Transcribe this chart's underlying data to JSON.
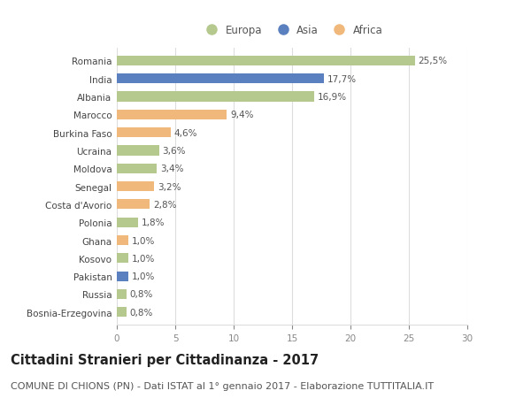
{
  "countries": [
    "Romania",
    "India",
    "Albania",
    "Marocco",
    "Burkina Faso",
    "Ucraina",
    "Moldova",
    "Senegal",
    "Costa d'Avorio",
    "Polonia",
    "Ghana",
    "Kosovo",
    "Pakistan",
    "Russia",
    "Bosnia-Erzegovina"
  ],
  "values": [
    25.5,
    17.7,
    16.9,
    9.4,
    4.6,
    3.6,
    3.4,
    3.2,
    2.8,
    1.8,
    1.0,
    1.0,
    1.0,
    0.8,
    0.8
  ],
  "labels": [
    "25,5%",
    "17,7%",
    "16,9%",
    "9,4%",
    "4,6%",
    "3,6%",
    "3,4%",
    "3,2%",
    "2,8%",
    "1,8%",
    "1,0%",
    "1,0%",
    "1,0%",
    "0,8%",
    "0,8%"
  ],
  "continents": [
    "Europa",
    "Asia",
    "Europa",
    "Africa",
    "Africa",
    "Europa",
    "Europa",
    "Africa",
    "Africa",
    "Europa",
    "Africa",
    "Europa",
    "Asia",
    "Europa",
    "Europa"
  ],
  "colors": {
    "Europa": "#b5c98e",
    "Asia": "#5b80bf",
    "Africa": "#f0b87a"
  },
  "xlim": [
    0,
    30
  ],
  "xticks": [
    0,
    5,
    10,
    15,
    20,
    25,
    30
  ],
  "title": "Cittadini Stranieri per Cittadinanza - 2017",
  "subtitle": "COMUNE DI CHIONS (PN) - Dati ISTAT al 1° gennaio 2017 - Elaborazione TUTTITALIA.IT",
  "background_color": "#ffffff",
  "grid_color": "#dddddd",
  "bar_height": 0.55,
  "title_fontsize": 10.5,
  "subtitle_fontsize": 8,
  "label_fontsize": 7.5,
  "tick_fontsize": 7.5,
  "legend_fontsize": 8.5
}
